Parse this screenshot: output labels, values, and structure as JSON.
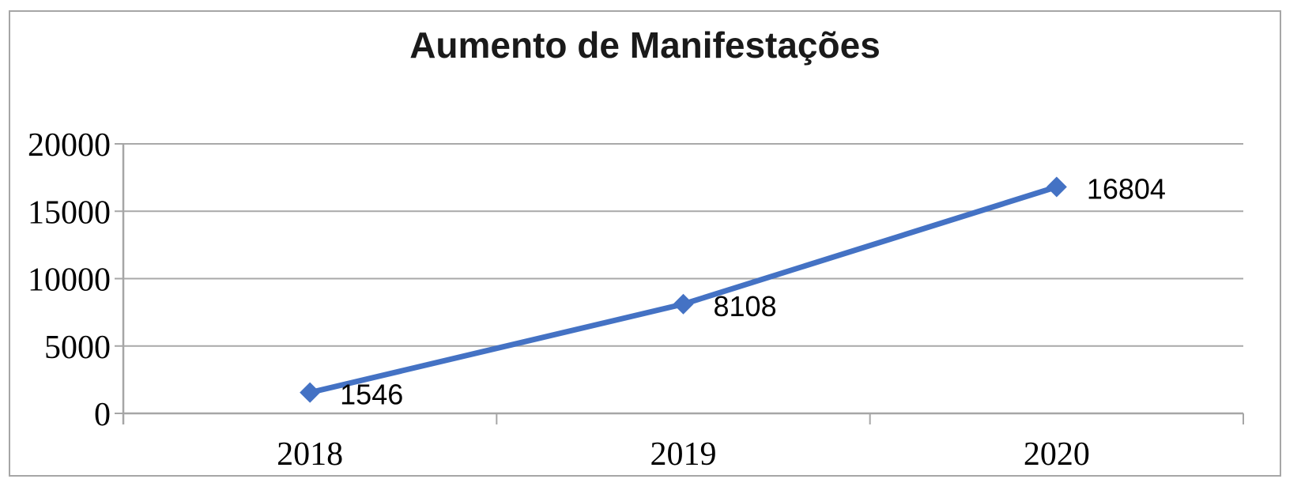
{
  "chart_data": {
    "type": "line",
    "title": "Aumento de Manifestações",
    "categories": [
      "2018",
      "2019",
      "2020"
    ],
    "values": [
      1546,
      8108,
      16804
    ],
    "data_labels": [
      "1546",
      "8108",
      "16804"
    ],
    "ylim": [
      0,
      20000
    ],
    "yticks": [
      0,
      5000,
      10000,
      15000,
      20000
    ],
    "ytick_labels": [
      "0",
      "5000",
      "10000",
      "15000",
      "20000"
    ],
    "grid": "horizontal",
    "legend": "none",
    "marker_style": "diamond",
    "colors": {
      "line": "#4472C4",
      "marker": "#4472C4",
      "axis": "#A6A6A6",
      "gridline": "#A9A9A9",
      "border": "#A6A6A6",
      "title_text": "#1a1a1a",
      "label_text": "#000000",
      "background": "#FFFFFF"
    }
  }
}
